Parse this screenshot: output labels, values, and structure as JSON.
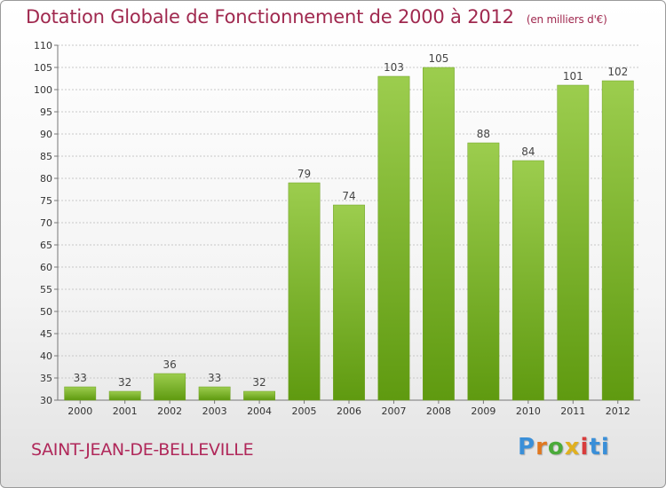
{
  "header": {
    "title": "Dotation Globale de Fonctionnement de 2000 à 2012",
    "subtitle": "(en milliers d'€)"
  },
  "footer": {
    "commune": "SAINT-JEAN-DE-BELLEVILLE",
    "logo_letters": [
      "P",
      "r",
      "o",
      "x",
      "i",
      "t",
      "i"
    ]
  },
  "colors": {
    "bar_top": "#9ccd4e",
    "bar_bottom": "#5f9a10",
    "title": "#a0294f",
    "grid": "#c8c8c8"
  },
  "chart_data": {
    "type": "bar",
    "title": "Dotation Globale de Fonctionnement de 2000 à 2012",
    "subtitle": "(en milliers d'€)",
    "xlabel": "",
    "ylabel": "",
    "categories": [
      "2000",
      "2001",
      "2002",
      "2003",
      "2004",
      "2005",
      "2006",
      "2007",
      "2008",
      "2009",
      "2010",
      "2011",
      "2012"
    ],
    "values": [
      33,
      32,
      36,
      33,
      32,
      79,
      74,
      103,
      105,
      88,
      84,
      101,
      102
    ],
    "ylim": [
      30,
      110
    ],
    "yticks": [
      30,
      35,
      40,
      45,
      50,
      55,
      60,
      65,
      70,
      75,
      80,
      85,
      90,
      95,
      100,
      105,
      110
    ],
    "grid": true,
    "data_labels": true
  }
}
